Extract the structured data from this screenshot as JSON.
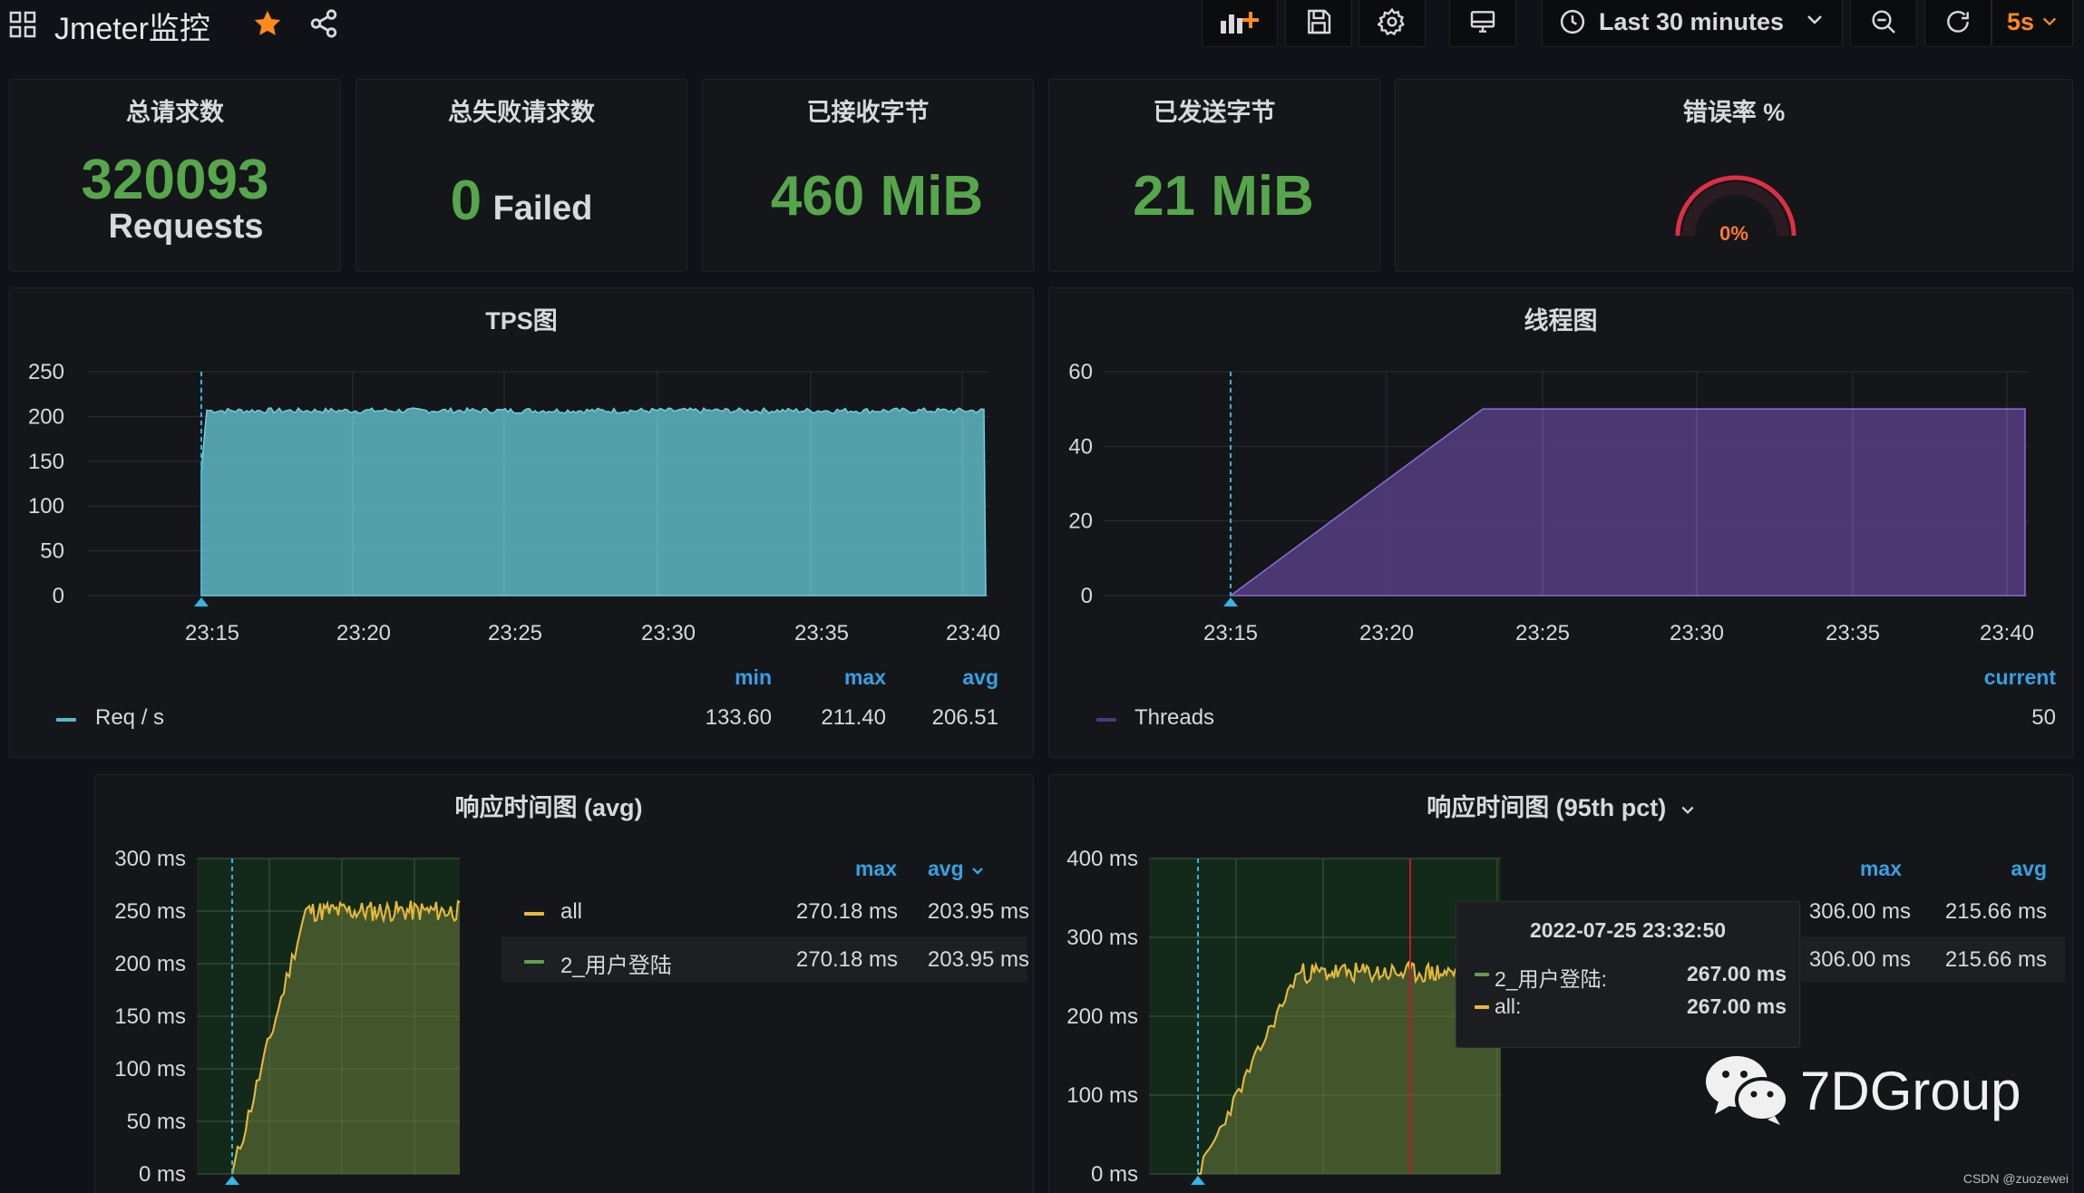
{
  "dashboard": {
    "title": "Jmeter监控",
    "time_range": "Last 30 minutes",
    "refresh": "5s"
  },
  "icons": {
    "apps": "grid-icon",
    "favorite": "star-icon",
    "share": "share-icon",
    "add_panel": "add-panel-icon",
    "save": "save-icon",
    "settings": "gear-icon",
    "tv": "monitor-icon",
    "clock": "clock-icon",
    "zoom_out": "zoom-out-icon",
    "refresh": "refresh-icon"
  },
  "colors": {
    "stat_green": "#56a64b",
    "tps_fill": "#5eb8c6",
    "threads_fill": "#4e3a78",
    "all_series": "#eab839",
    "login_series": "#629e51",
    "legend_header": "#33a2e5",
    "gauge_arc": "#e02f44",
    "gauge_text": "#ff7a2e",
    "star": "#ff8c1a"
  },
  "stats": {
    "total_requests": {
      "title": "总请求数",
      "value": "320093",
      "unit": "Requests"
    },
    "failed_requests": {
      "title": "总失败请求数",
      "value": "0",
      "unit": "Failed"
    },
    "bytes_received": {
      "title": "已接收字节",
      "value": "460 MiB"
    },
    "bytes_sent": {
      "title": "已发送字节",
      "value": "21 MiB"
    },
    "error_rate": {
      "title": "错误率 %",
      "value": "0%"
    }
  },
  "tps": {
    "title": "TPS图",
    "legend_headers": {
      "min": "min",
      "max": "max",
      "avg": "avg"
    },
    "series": {
      "name": "Req / s",
      "min": "133.60",
      "max": "211.40",
      "avg": "206.51"
    }
  },
  "threads": {
    "title": "线程图",
    "legend_header": "current",
    "series": {
      "name": "Threads",
      "current": "50"
    }
  },
  "resp_avg": {
    "title": "响应时间图 (avg)",
    "legend_headers": {
      "max": "max",
      "avg": "avg"
    },
    "rows": [
      {
        "name": "all",
        "max": "270.18 ms",
        "avg": "203.95 ms"
      },
      {
        "name": "2_用户登陆",
        "max": "270.18 ms",
        "avg": "203.95 ms"
      }
    ]
  },
  "resp_p95": {
    "title": "响应时间图 (95th pct)",
    "legend_headers": {
      "max": "max",
      "avg": "avg"
    },
    "rows": [
      {
        "max": "306.00 ms",
        "avg": "215.66 ms"
      },
      {
        "max": "306.00 ms",
        "avg": "215.66 ms"
      }
    ],
    "tooltip": {
      "time": "2022-07-25 23:32:50",
      "rows": [
        {
          "name": "2_用户登陆:",
          "value": "267.00 ms"
        },
        {
          "name": "all:",
          "value": "267.00 ms"
        }
      ]
    }
  },
  "watermark": {
    "brand": "7DGroup",
    "credit": "CSDN @zuozewei"
  },
  "chart_data": [
    {
      "type": "area",
      "title": "TPS图",
      "x": [
        "23:15",
        "23:20",
        "23:25",
        "23:30",
        "23:35",
        "23:40"
      ],
      "yticks": [
        "250",
        "200",
        "150",
        "100",
        "50",
        "0"
      ],
      "ylim": [
        0,
        250
      ],
      "series": [
        {
          "name": "Req / s",
          "values": [
            140,
            207,
            207,
            207,
            207,
            206
          ],
          "min": 133.6,
          "max": 211.4,
          "avg": 206.51
        }
      ],
      "grid": true,
      "legend": "bottom"
    },
    {
      "type": "area",
      "title": "线程图",
      "x": [
        "23:15",
        "23:20",
        "23:25",
        "23:30",
        "23:35",
        "23:40"
      ],
      "yticks": [
        "60",
        "40",
        "20",
        "0"
      ],
      "ylim": [
        0,
        60
      ],
      "series": [
        {
          "name": "Threads",
          "values": [
            0,
            25,
            50,
            50,
            50,
            50
          ],
          "current": 50
        }
      ],
      "grid": true,
      "legend": "bottom"
    },
    {
      "type": "line",
      "title": "响应时间图 (avg)",
      "yticks": [
        "300 ms",
        "250 ms",
        "200 ms",
        "150 ms",
        "100 ms",
        "50 ms",
        "0 ms"
      ],
      "ylim": [
        0,
        300
      ],
      "series": [
        {
          "name": "all",
          "max": 270.18,
          "avg": 203.95
        },
        {
          "name": "2_用户登陆",
          "max": 270.18,
          "avg": 203.95
        }
      ],
      "legend": "right"
    },
    {
      "type": "line",
      "title": "响应时间图 (95th pct)",
      "yticks": [
        "400 ms",
        "300 ms",
        "200 ms",
        "100 ms",
        "0 ms"
      ],
      "ylim": [
        0,
        400
      ],
      "series": [
        {
          "name": "2_用户登陆",
          "max": 306.0,
          "avg": 215.66
        },
        {
          "name": "all",
          "max": 306.0,
          "avg": 215.66
        }
      ],
      "legend": "right"
    }
  ]
}
